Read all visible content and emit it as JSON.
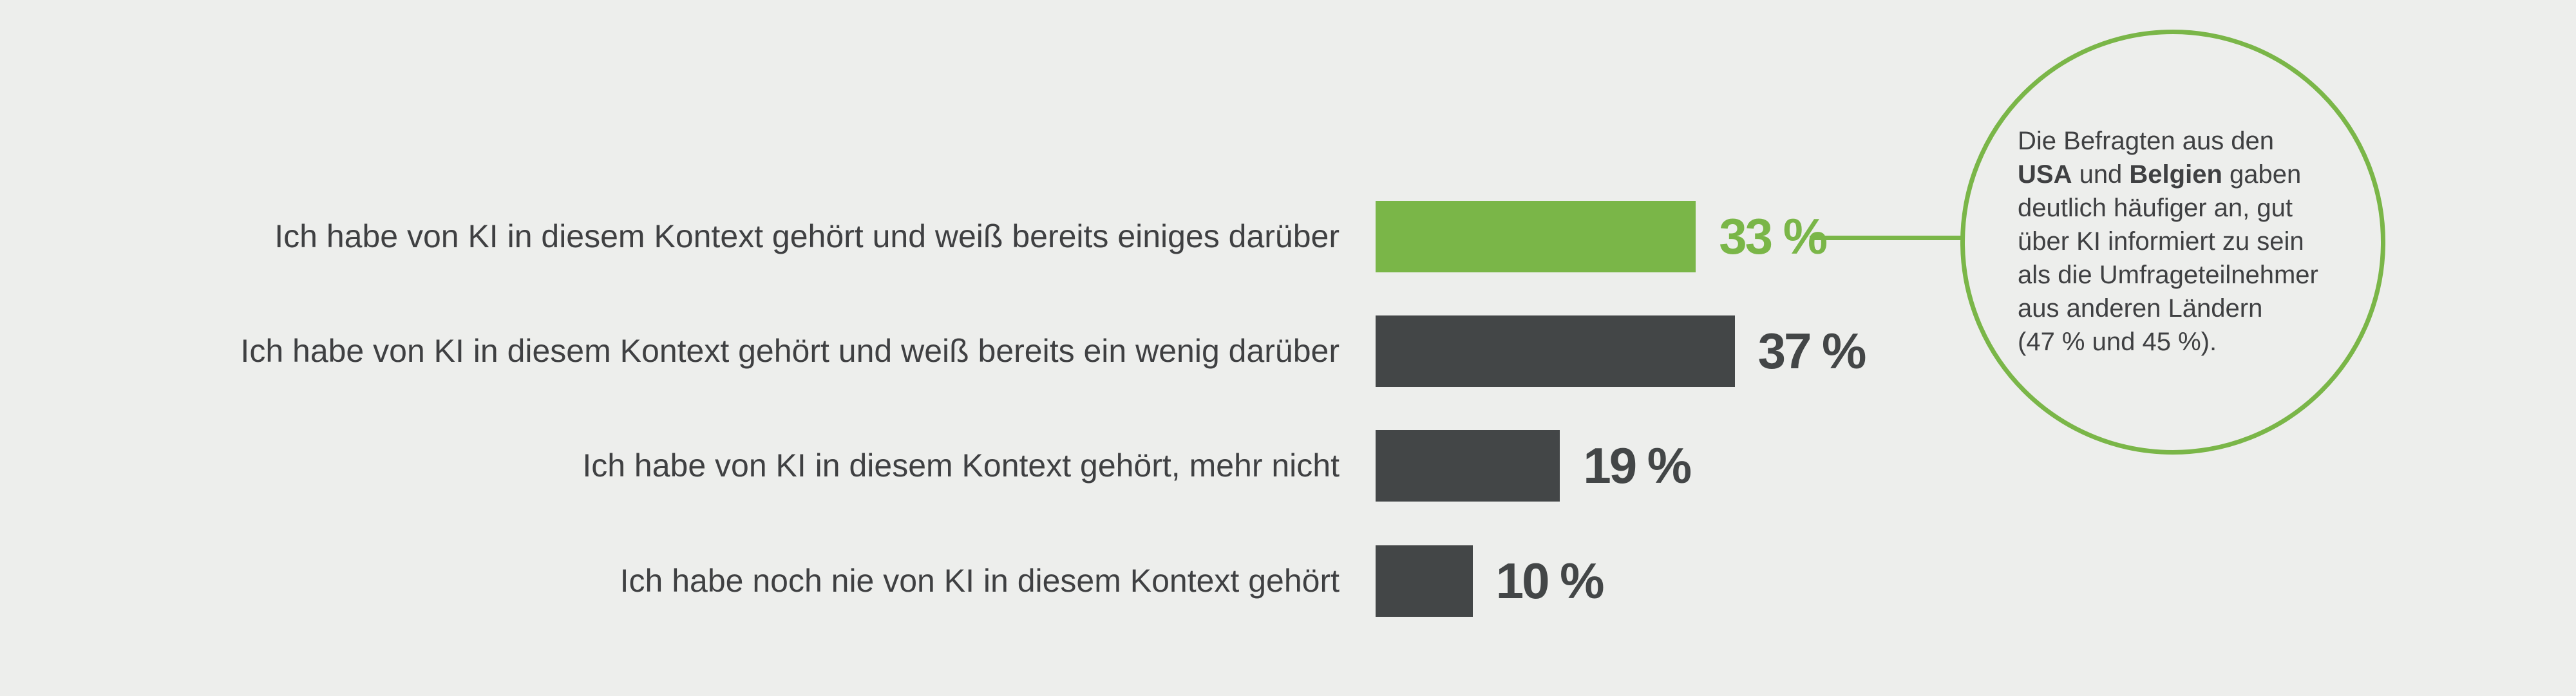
{
  "chart_data": {
    "type": "bar",
    "orientation": "horizontal",
    "categories": [
      "Ich habe von KI in diesem Kontext gehört und weiß bereits einiges darüber",
      "Ich habe von KI in diesem Kontext gehört und weiß bereits ein wenig darüber",
      "Ich habe von KI in diesem Kontext gehört, mehr nicht",
      "Ich habe noch nie von KI in diesem Kontext gehört"
    ],
    "values": [
      33,
      37,
      19,
      10
    ],
    "value_labels": [
      "33 %",
      "37 %",
      "19 %",
      "10 %"
    ],
    "highlight_index": 0,
    "title": "",
    "xlabel": "",
    "ylabel": "",
    "grid": false,
    "legend": "none",
    "colors": {
      "highlight": "#7ab648",
      "default": "#434647",
      "background": "#edeeec",
      "text": "#3f4042"
    }
  },
  "callout": {
    "line1": "Die Befragten aus den",
    "bold1": "USA",
    "and_word": " und ",
    "bold2": "Belgien",
    "line2_rest": " gaben",
    "rest_lines": [
      "deutlich häufiger an, gut",
      "über KI informiert zu sein",
      "als die Umfrageteilnehmer",
      "aus anderen Ländern",
      "(47 % und 45 %)."
    ]
  }
}
